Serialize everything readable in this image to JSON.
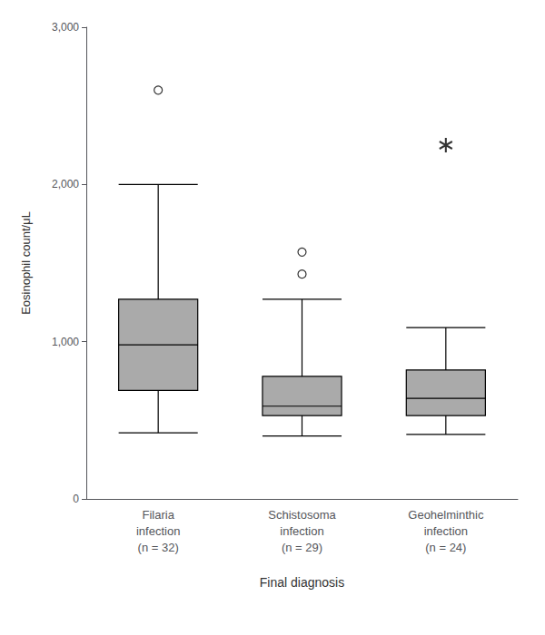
{
  "chart_data": {
    "type": "boxplot",
    "ylabel": "Eosinophil count/μL",
    "xlabel": "Final diagnosis",
    "categories": [
      "Filaria\ninfection\n(n = 32)",
      "Schistosoma\ninfection\n(n = 29)",
      "Geohelminthic\ninfection\n(n = 24)"
    ],
    "values": [
      [
        420,
        690,
        980,
        1270,
        2000
      ],
      [
        400,
        530,
        590,
        780,
        1270
      ],
      [
        410,
        530,
        640,
        820,
        1090
      ]
    ],
    "outliers": [
      [
        2600
      ],
      [
        1430,
        1570
      ],
      []
    ],
    "extreme_outliers": [
      [],
      [],
      [
        2250
      ]
    ],
    "color": "#aaaaaa",
    "ylim": [
      0,
      3000
    ],
    "yticks": [
      0,
      {
        "value": 1000,
        "label": "1,000"
      },
      {
        "value": 2000,
        "label": "2,000"
      },
      {
        "value": 3000,
        "label": "3,000"
      }
    ],
    "grid": false
  }
}
